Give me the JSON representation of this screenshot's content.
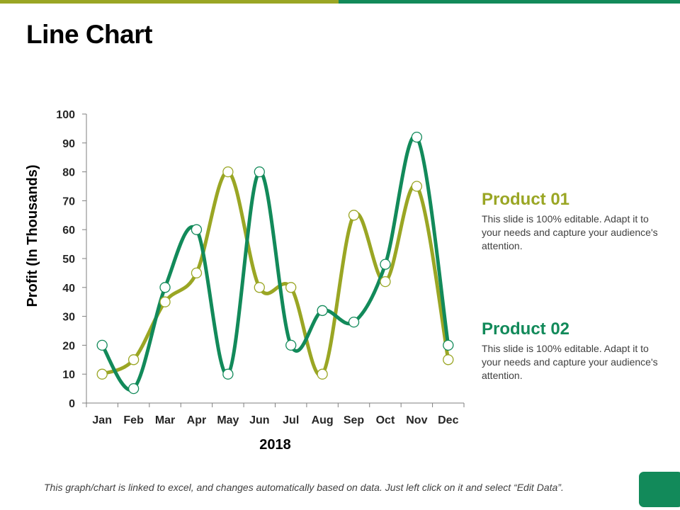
{
  "slide": {
    "title": "Line Chart",
    "footer": "This graph/chart is linked to excel, and changes automatically based on data. Just left click on it and select “Edit Data”."
  },
  "colors": {
    "product01": "#9aa624",
    "product02": "#128a5a",
    "top_bar_left": "#9aa624",
    "top_bar_right": "#128a5a",
    "corner_button": "#128a5a"
  },
  "legend": [
    {
      "title": "Product 01",
      "description": "This slide is 100% editable. Adapt it to your needs and capture your audience's attention."
    },
    {
      "title": "Product 02",
      "description": "This slide is 100% editable. Adapt it to your needs and capture your audience's attention."
    }
  ],
  "chart_data": {
    "type": "line",
    "title": "",
    "xlabel": "2018",
    "ylabel": "Profit (In Thousands)",
    "ylim": [
      0,
      100
    ],
    "yticks": [
      "0",
      "10",
      "20",
      "30",
      "40",
      "50",
      "60",
      "70",
      "80",
      "90",
      "100"
    ],
    "categories": [
      "Jan",
      "Feb",
      "Mar",
      "Apr",
      "May",
      "Jun",
      "Jul",
      "Aug",
      "Sep",
      "Oct",
      "Nov",
      "Dec"
    ],
    "grid": false,
    "legend": "right",
    "smooth": true,
    "series": [
      {
        "name": "Product 01",
        "values": [
          10,
          15,
          35,
          45,
          80,
          40,
          40,
          10,
          65,
          42,
          75,
          15
        ]
      },
      {
        "name": "Product 02",
        "values": [
          20,
          5,
          40,
          60,
          10,
          80,
          20,
          32,
          28,
          48,
          92,
          20
        ]
      }
    ]
  }
}
